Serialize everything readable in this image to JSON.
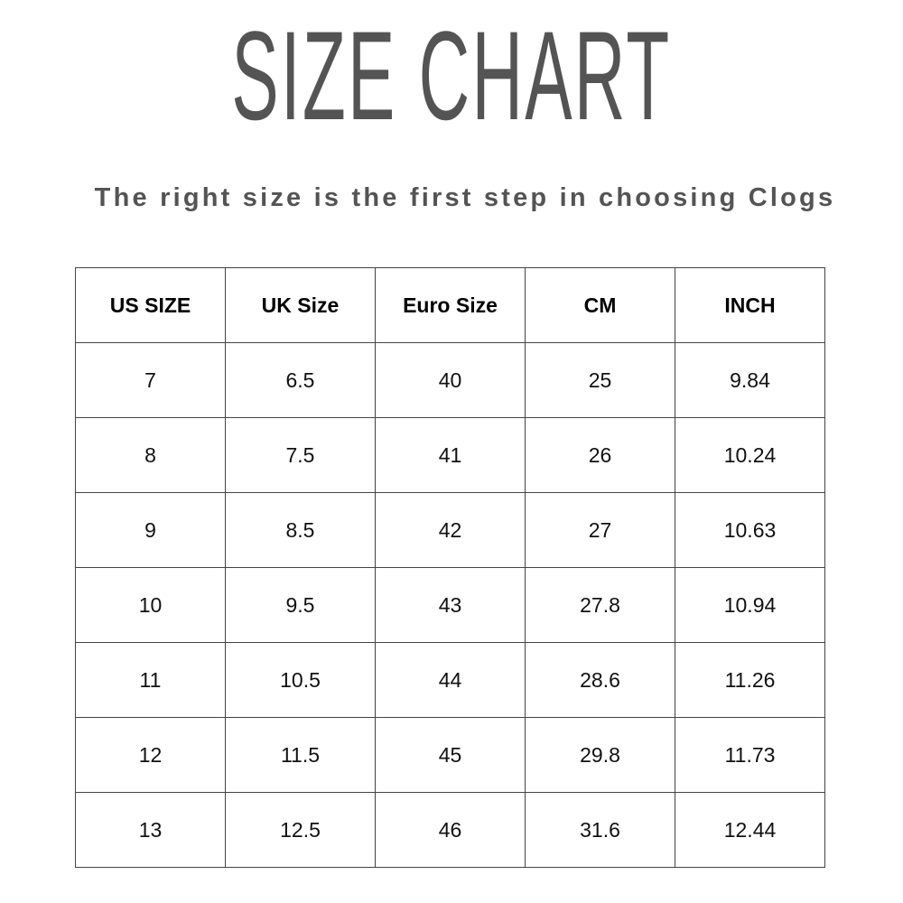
{
  "title": "SIZE CHART",
  "subtitle": "The right size is the first step in choosing Clogs",
  "table": {
    "headers": [
      "US SIZE",
      "UK Size",
      "Euro Size",
      "CM",
      "INCH"
    ],
    "rows": [
      [
        "7",
        "6.5",
        "40",
        "25",
        "9.84"
      ],
      [
        "8",
        "7.5",
        "41",
        "26",
        "10.24"
      ],
      [
        "9",
        "8.5",
        "42",
        "27",
        "10.63"
      ],
      [
        "10",
        "9.5",
        "43",
        "27.8",
        "10.94"
      ],
      [
        "11",
        "10.5",
        "44",
        "28.6",
        "11.26"
      ],
      [
        "12",
        "11.5",
        "45",
        "29.8",
        "11.73"
      ],
      [
        "13",
        "12.5",
        "46",
        "31.6",
        "12.44"
      ]
    ]
  }
}
